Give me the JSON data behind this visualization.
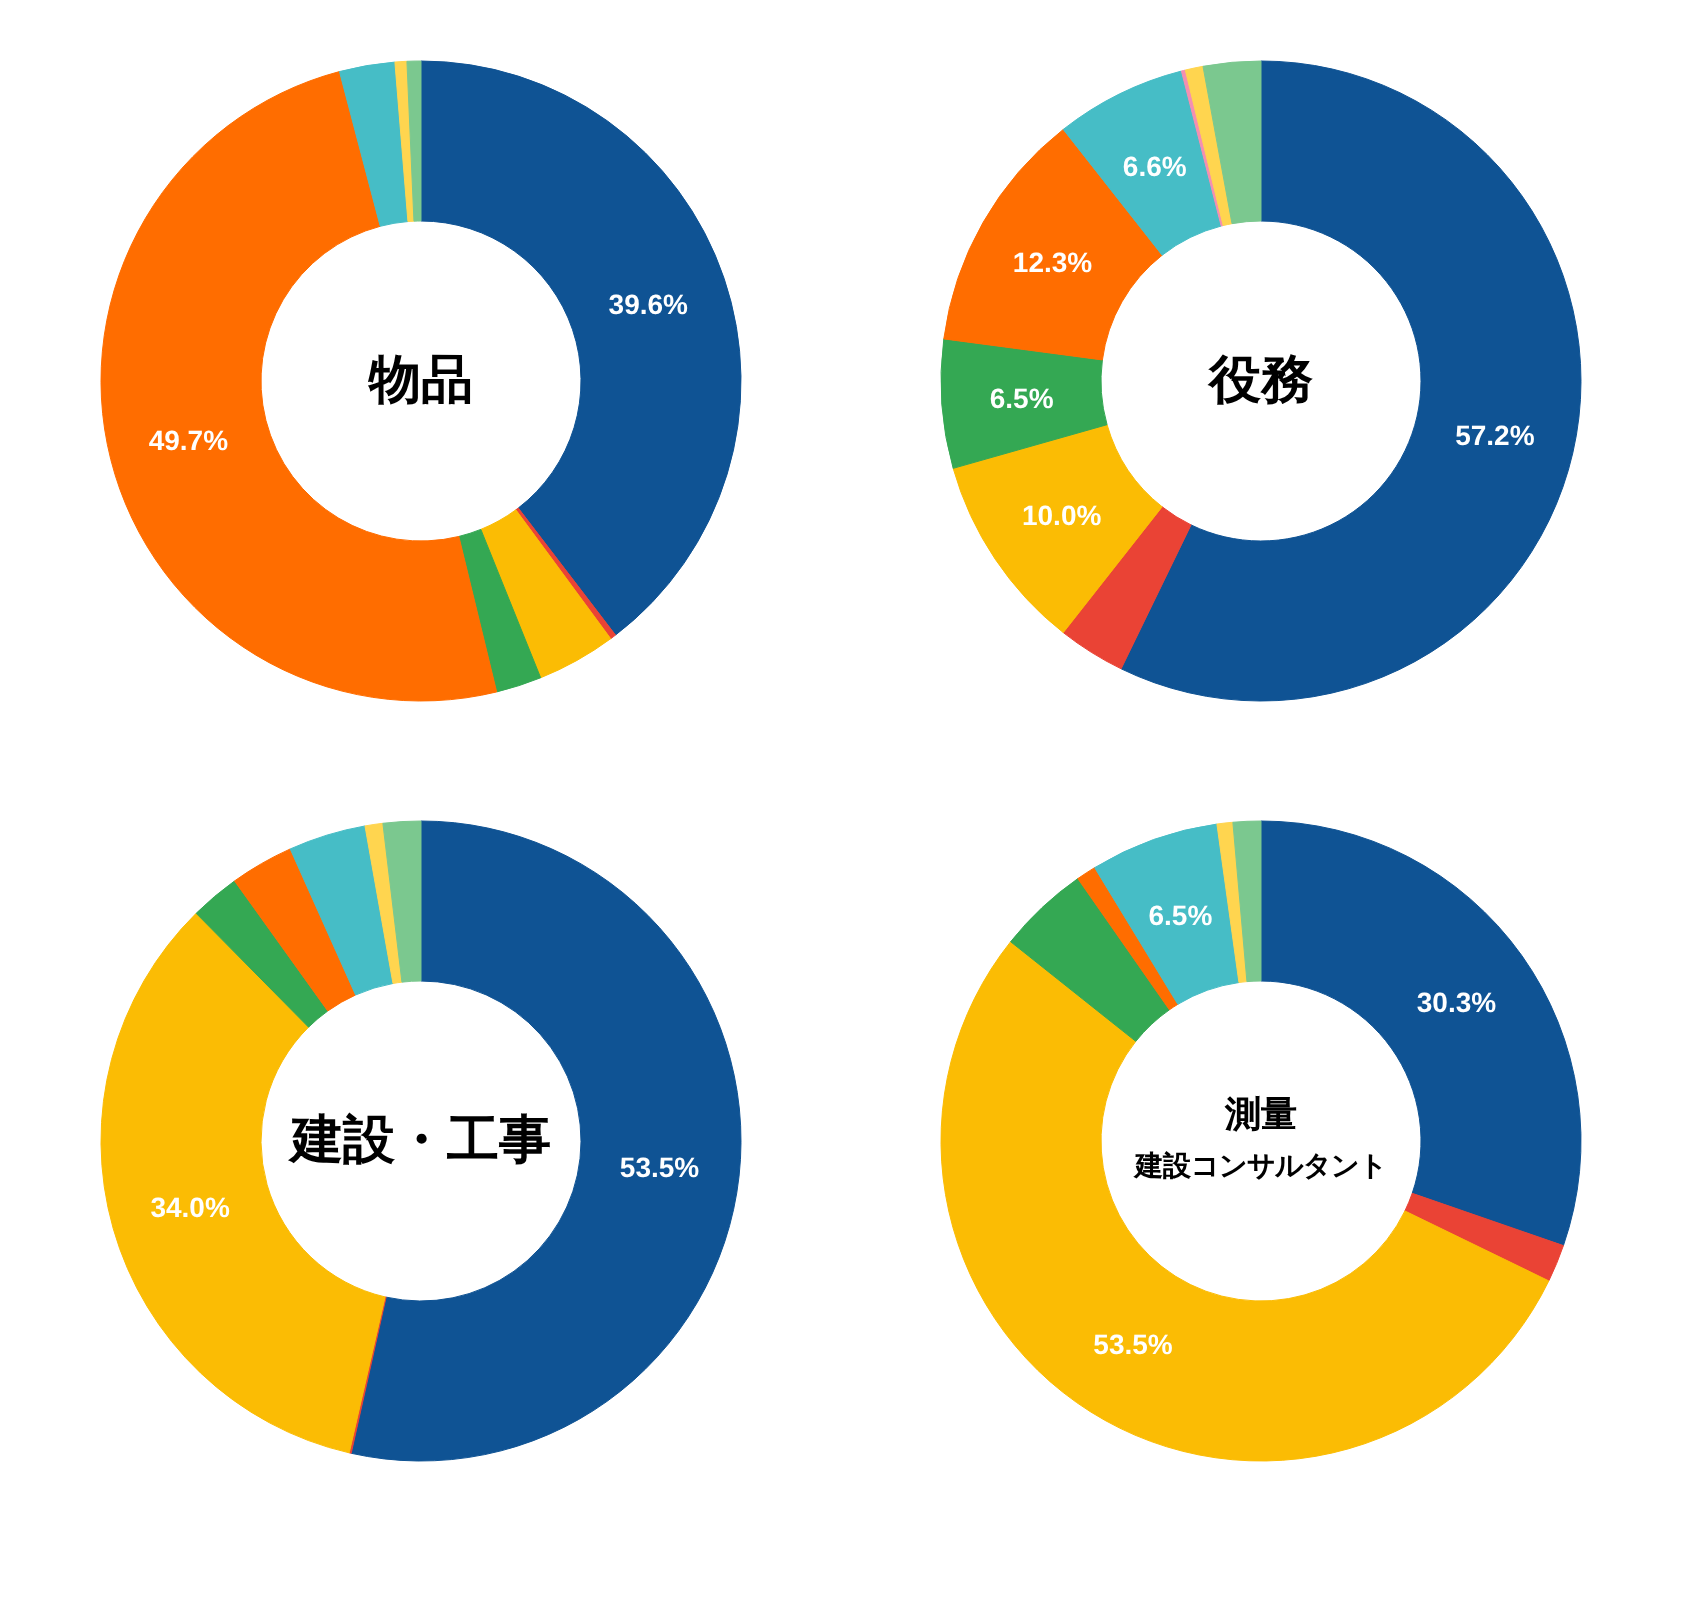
{
  "chart_data": [
    {
      "type": "donut",
      "title": "物品",
      "categories": [
        null,
        null,
        null,
        null,
        null,
        null,
        null,
        null
      ],
      "values": [
        39.6,
        0.3,
        4.0,
        2.3,
        49.7,
        2.8,
        0.6,
        0.7
      ],
      "colors": [
        "#0f5394",
        "#ea4335",
        "#fbbc04",
        "#34a853",
        "#ff6d00",
        "#46bdc6",
        "#ffd54f",
        "#7bc88f"
      ],
      "value_labels": [
        "39.6%",
        null,
        null,
        null,
        "49.7%",
        null,
        null,
        null
      ]
    },
    {
      "type": "donut",
      "title": "役務",
      "categories": [
        null,
        null,
        null,
        null,
        null,
        null,
        null,
        null,
        null
      ],
      "values": [
        57.2,
        3.4,
        10.0,
        6.5,
        12.3,
        6.6,
        0.2,
        0.9,
        2.9
      ],
      "colors": [
        "#0f5394",
        "#ea4335",
        "#fbbc04",
        "#34a853",
        "#ff6d00",
        "#46bdc6",
        "#f48fb1",
        "#ffd54f",
        "#7bc88f"
      ],
      "value_labels": [
        "57.2%",
        null,
        "10.0%",
        "6.5%",
        "12.3%",
        "6.6%",
        null,
        null,
        null
      ]
    },
    {
      "type": "donut",
      "title": "建設・工事",
      "categories": [
        null,
        null,
        null,
        null,
        null,
        null,
        null,
        null
      ],
      "values": [
        53.5,
        0.1,
        34.0,
        2.5,
        3.2,
        3.9,
        0.9,
        1.9
      ],
      "colors": [
        "#0f5394",
        "#ea4335",
        "#fbbc04",
        "#34a853",
        "#ff6d00",
        "#46bdc6",
        "#ffd54f",
        "#7bc88f"
      ],
      "value_labels": [
        "53.5%",
        null,
        "34.0%",
        null,
        null,
        null,
        null,
        null
      ]
    },
    {
      "type": "donut",
      "title": "測量",
      "subtitle": "建設コンサルタント",
      "categories": [
        null,
        null,
        null,
        null,
        null,
        null,
        null,
        null
      ],
      "values": [
        30.3,
        1.9,
        53.5,
        4.6,
        1.0,
        6.5,
        0.8,
        1.4
      ],
      "colors": [
        "#0f5394",
        "#ea4335",
        "#fbbc04",
        "#34a853",
        "#ff6d00",
        "#46bdc6",
        "#ffd54f",
        "#7bc88f"
      ],
      "value_labels": [
        "30.3%",
        null,
        "53.5%",
        null,
        null,
        "6.5%",
        null,
        null
      ]
    }
  ]
}
